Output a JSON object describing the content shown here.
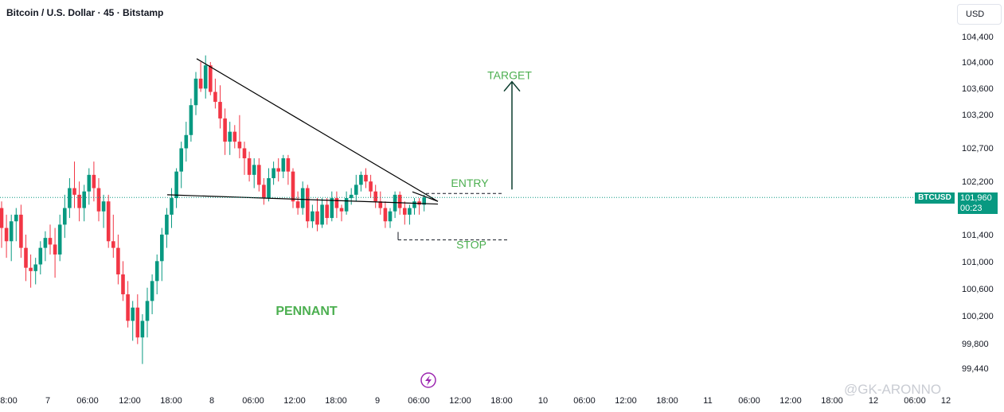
{
  "header": {
    "title": "Bitcoin / U.S. Dollar · 45 · Bitstamp",
    "currency": "USD"
  },
  "price_tag": {
    "symbol": "BTCUSD",
    "price": "101,960",
    "countdown": "00:23"
  },
  "watermark": "@GK-ARONNO",
  "colors": {
    "up": "#089981",
    "down": "#f23645",
    "annotation": "#4caf50",
    "arrow": "#0b3d2e",
    "trendline": "#000000",
    "current_price_line": "#089981"
  },
  "chart_data": {
    "type": "candlestick",
    "title": "Bitcoin / U.S. Dollar · 45 · Bitstamp",
    "y_tick_labels": [
      "104,400",
      "104,000",
      "103,600",
      "103,200",
      "102,700",
      "102,200",
      "101,400",
      "101,000",
      "100,600",
      "100,200",
      "99,800",
      "99,440"
    ],
    "x_tick_labels": [
      "8:00",
      "7",
      "06:00",
      "12:00",
      "18:00",
      "8",
      "06:00",
      "12:00",
      "18:00",
      "9",
      "06:00",
      "12:00",
      "18:00",
      "10",
      "06:00",
      "12:00",
      "18:00",
      "11",
      "06:00",
      "12:00",
      "18:00",
      "12",
      "06:00",
      "12"
    ],
    "current_price": 101960,
    "candles": [
      [
        101800,
        101900,
        101200,
        101500
      ],
      [
        101500,
        101700,
        101050,
        101300
      ],
      [
        101300,
        101700,
        101000,
        101600
      ],
      [
        101600,
        101800,
        101300,
        101700
      ],
      [
        101700,
        101850,
        101050,
        101200
      ],
      [
        101200,
        101400,
        100700,
        100900
      ],
      [
        100900,
        101100,
        100600,
        100850
      ],
      [
        100850,
        101050,
        100650,
        100950
      ],
      [
        100950,
        101300,
        100800,
        101200
      ],
      [
        101200,
        101450,
        101000,
        101350
      ],
      [
        101350,
        101550,
        101100,
        101250
      ],
      [
        101250,
        101500,
        100750,
        101100
      ],
      [
        101100,
        101700,
        101000,
        101550
      ],
      [
        101550,
        102000,
        101350,
        101800
      ],
      [
        101800,
        102250,
        101650,
        102100
      ],
      [
        102100,
        102500,
        101800,
        102000
      ],
      [
        102000,
        102200,
        101600,
        101800
      ],
      [
        101800,
        102150,
        101600,
        102050
      ],
      [
        102050,
        102400,
        101850,
        102300
      ],
      [
        102300,
        102500,
        101900,
        102100
      ],
      [
        102100,
        102250,
        101600,
        101750
      ],
      [
        101750,
        102000,
        101500,
        101900
      ],
      [
        101900,
        102000,
        101200,
        101300
      ],
      [
        101300,
        101700,
        101050,
        101200
      ],
      [
        101200,
        101400,
        100650,
        100800
      ],
      [
        100800,
        101000,
        100400,
        100500
      ],
      [
        100500,
        100700,
        100000,
        100100
      ],
      [
        100100,
        100400,
        99800,
        100300
      ],
      [
        100300,
        100500,
        99750,
        99850
      ],
      [
        99850,
        100200,
        99450,
        100100
      ],
      [
        100100,
        100600,
        99850,
        100400
      ],
      [
        100400,
        100800,
        100200,
        100700
      ],
      [
        100700,
        101100,
        100500,
        101000
      ],
      [
        101000,
        101500,
        100700,
        101400
      ],
      [
        101400,
        101800,
        101200,
        101700
      ],
      [
        101700,
        102100,
        101500,
        101950
      ],
      [
        101950,
        102400,
        101800,
        102350
      ],
      [
        102350,
        102800,
        102100,
        102700
      ],
      [
        102700,
        103100,
        102500,
        102900
      ],
      [
        102900,
        103450,
        102800,
        103350
      ],
      [
        103350,
        103850,
        103200,
        103750
      ],
      [
        103750,
        104000,
        103550,
        103600
      ],
      [
        103600,
        104100,
        103450,
        103950
      ],
      [
        103950,
        104000,
        103500,
        103550
      ],
      [
        103550,
        103750,
        103300,
        103400
      ],
      [
        103400,
        103650,
        103000,
        103150
      ],
      [
        103150,
        103300,
        102600,
        102800
      ],
      [
        102800,
        103100,
        102600,
        102950
      ],
      [
        102950,
        103050,
        102700,
        102800
      ],
      [
        102800,
        103200,
        102550,
        102700
      ],
      [
        102700,
        102800,
        102300,
        102550
      ],
      [
        102550,
        102650,
        102200,
        102300
      ],
      [
        102300,
        102550,
        102100,
        102450
      ],
      [
        102450,
        102550,
        102050,
        102150
      ],
      [
        102150,
        102250,
        101850,
        101950
      ],
      [
        101950,
        102400,
        101900,
        102250
      ],
      [
        102250,
        102500,
        102150,
        102400
      ],
      [
        102400,
        102550,
        102200,
        102350
      ],
      [
        102350,
        102600,
        102250,
        102550
      ],
      [
        102550,
        102600,
        102150,
        102350
      ],
      [
        102350,
        102400,
        101800,
        101900
      ],
      [
        101900,
        102050,
        101700,
        101800
      ],
      [
        101800,
        102200,
        101700,
        102100
      ],
      [
        102100,
        102150,
        101500,
        101600
      ],
      [
        101600,
        101850,
        101500,
        101750
      ],
      [
        101750,
        101950,
        101450,
        101550
      ],
      [
        101550,
        101950,
        101500,
        101850
      ],
      [
        101850,
        101950,
        101550,
        101650
      ],
      [
        101650,
        102050,
        101600,
        101950
      ],
      [
        101950,
        102050,
        101650,
        101800
      ],
      [
        101800,
        101850,
        101600,
        101750
      ],
      [
        101750,
        102050,
        101700,
        101950
      ],
      [
        101950,
        102100,
        101850,
        102000
      ],
      [
        102000,
        102300,
        101900,
        102150
      ],
      [
        102150,
        102350,
        102050,
        102300
      ],
      [
        102300,
        102400,
        102100,
        102200
      ],
      [
        102200,
        102300,
        101950,
        102050
      ],
      [
        102050,
        102150,
        101800,
        101900
      ],
      [
        101900,
        102050,
        101700,
        101800
      ],
      [
        101800,
        101900,
        101500,
        101600
      ],
      [
        101600,
        101800,
        101500,
        101750
      ],
      [
        101750,
        102050,
        101650,
        102000
      ],
      [
        102000,
        102050,
        101700,
        101800
      ],
      [
        101800,
        101900,
        101550,
        101700
      ],
      [
        101700,
        101850,
        101550,
        101800
      ],
      [
        101800,
        101950,
        101700,
        101900
      ],
      [
        101900,
        101950,
        101700,
        101850
      ],
      [
        101850,
        102000,
        101750,
        101960
      ]
    ],
    "annotations": [
      {
        "text": "TARGET",
        "price": 103800
      },
      {
        "text": "ENTRY",
        "price": 102180
      },
      {
        "text": "STOP",
        "price": 101250
      },
      {
        "text": "PENNANT",
        "price": 100250
      }
    ],
    "levels": {
      "entry": 102020,
      "stop": 101320
    },
    "trendlines": [
      {
        "name": "upper",
        "from_price": 104050,
        "to_price": 101900
      },
      {
        "name": "lower",
        "from_price": 102000,
        "to_price": 101860
      }
    ]
  }
}
